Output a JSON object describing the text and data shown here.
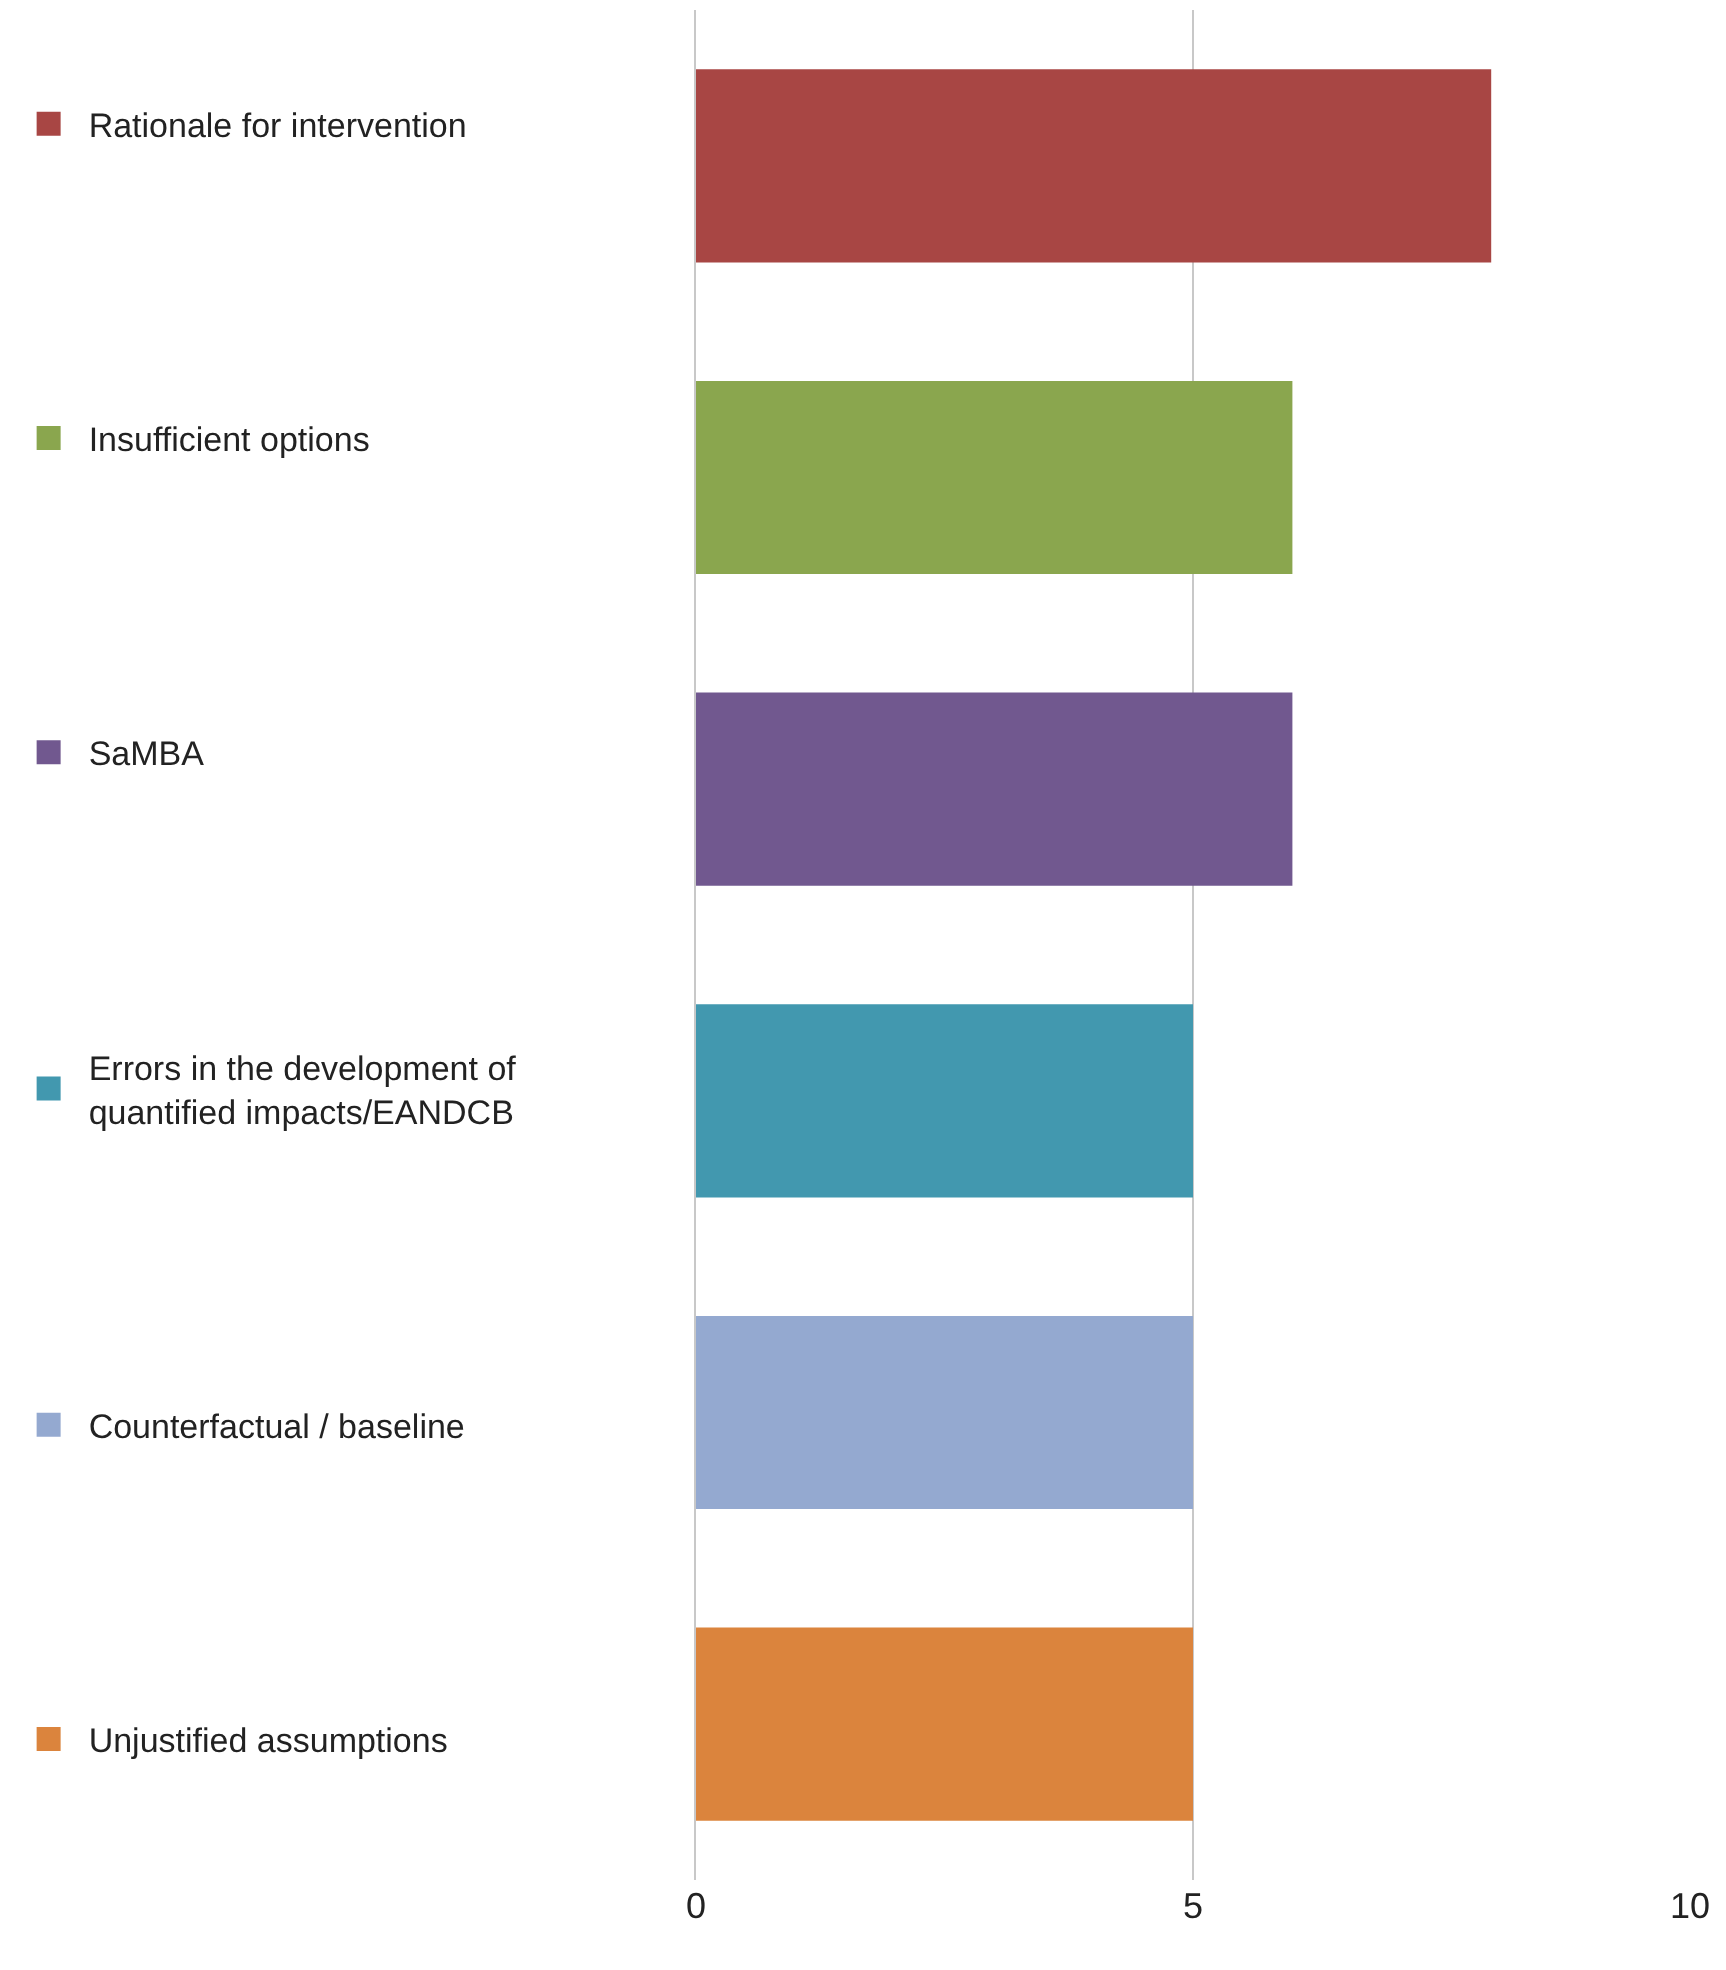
{
  "chart_data": {
    "type": "bar",
    "orientation": "horizontal",
    "categories": [
      null,
      null,
      null,
      null,
      null,
      null
    ],
    "series": [
      {
        "name": "Rationale for intervention",
        "color": "#a84644",
        "values": [
          8,
          null,
          null,
          null,
          null,
          null
        ]
      },
      {
        "name": "Insufficient options",
        "color": "#8aa64e",
        "values": [
          null,
          6,
          null,
          null,
          null,
          null
        ]
      },
      {
        "name": "SaMBA",
        "color": "#71588f",
        "values": [
          null,
          null,
          6,
          null,
          null,
          null
        ]
      },
      {
        "name": "Errors in the development of quantified impacts/EANDCB",
        "color": "#4298af",
        "values": [
          null,
          null,
          null,
          5,
          null,
          null
        ]
      },
      {
        "name": "Counterfactual / baseline",
        "color": "#94a9d0",
        "values": [
          null,
          null,
          null,
          null,
          5,
          null
        ]
      },
      {
        "name": "Unjustified assumptions",
        "color": "#db843d",
        "values": [
          null,
          null,
          null,
          null,
          null,
          5
        ]
      }
    ],
    "xlim": [
      0,
      10
    ],
    "xticks": [
      0,
      5,
      10
    ],
    "grid": "x",
    "legend": "left"
  }
}
